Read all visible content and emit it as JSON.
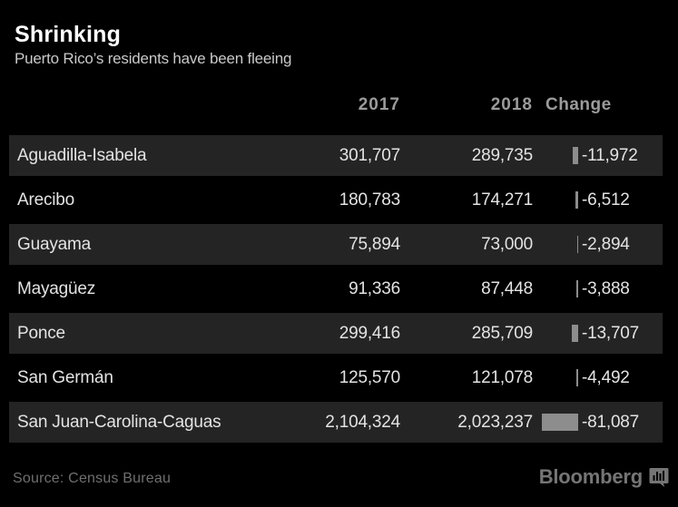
{
  "title": "Shrinking",
  "subtitle": "Puerto Rico’s residents have been fleeing",
  "table": {
    "headers": {
      "y2017": "2017",
      "y2018": "2018",
      "change": "Change"
    },
    "rows": [
      {
        "name": "Aguadilla-Isabela",
        "y2017": "301,707",
        "y2018": "289,735",
        "change_label": "-11,972",
        "change_value": -11972
      },
      {
        "name": "Arecibo",
        "y2017": "180,783",
        "y2018": "174,271",
        "change_label": "-6,512",
        "change_value": -6512
      },
      {
        "name": "Guayama",
        "y2017": "75,894",
        "y2018": "73,000",
        "change_label": "-2,894",
        "change_value": -2894
      },
      {
        "name": "Mayagüez",
        "y2017": "91,336",
        "y2018": "87,448",
        "change_label": "-3,888",
        "change_value": -3888
      },
      {
        "name": "Ponce",
        "y2017": "299,416",
        "y2018": "285,709",
        "change_label": "-13,707",
        "change_value": -13707
      },
      {
        "name": "San Germán",
        "y2017": "125,570",
        "y2018": "121,078",
        "change_label": "-4,492",
        "change_value": -4492
      },
      {
        "name": "San Juan-Carolina-Caguas",
        "y2017": "2,104,324",
        "y2018": "2,023,237",
        "change_label": "-81,087",
        "change_value": -81087
      }
    ]
  },
  "footer": {
    "source": "Source: Census Bureau",
    "brand": "Bloomberg",
    "brand_icon": "bloomberg-terminal-icon"
  },
  "colors": {
    "background": "#000000",
    "row_shaded": "#242424",
    "title": "#ffffff",
    "subtitle": "#c9c9c9",
    "header_text": "#9b9b9b",
    "cell_text": "#e3e3e3",
    "change_bar": "#8d8d8d",
    "footer_text": "#6f6f6f"
  },
  "chart_data": {
    "type": "table",
    "title": "Shrinking",
    "subtitle": "Puerto Rico’s residents have been fleeing",
    "columns": [
      "2017",
      "2018",
      "Change"
    ],
    "categories": [
      "Aguadilla-Isabela",
      "Arecibo",
      "Guayama",
      "Mayagüez",
      "Ponce",
      "San Germán",
      "San Juan-Carolina-Caguas"
    ],
    "series": [
      {
        "name": "2017",
        "values": [
          301707,
          180783,
          75894,
          91336,
          299416,
          125570,
          2104324
        ]
      },
      {
        "name": "2018",
        "values": [
          289735,
          174271,
          73000,
          87448,
          285709,
          121078,
          2023237
        ]
      },
      {
        "name": "Change",
        "values": [
          -11972,
          -6512,
          -2894,
          -3888,
          -13707,
          -4492,
          -81087
        ]
      }
    ],
    "annotations": "Change column includes inline negative bar glyphs, width proportional to magnitude (max -81,087)",
    "legend_position": "none",
    "source": "Source: Census Bureau"
  }
}
